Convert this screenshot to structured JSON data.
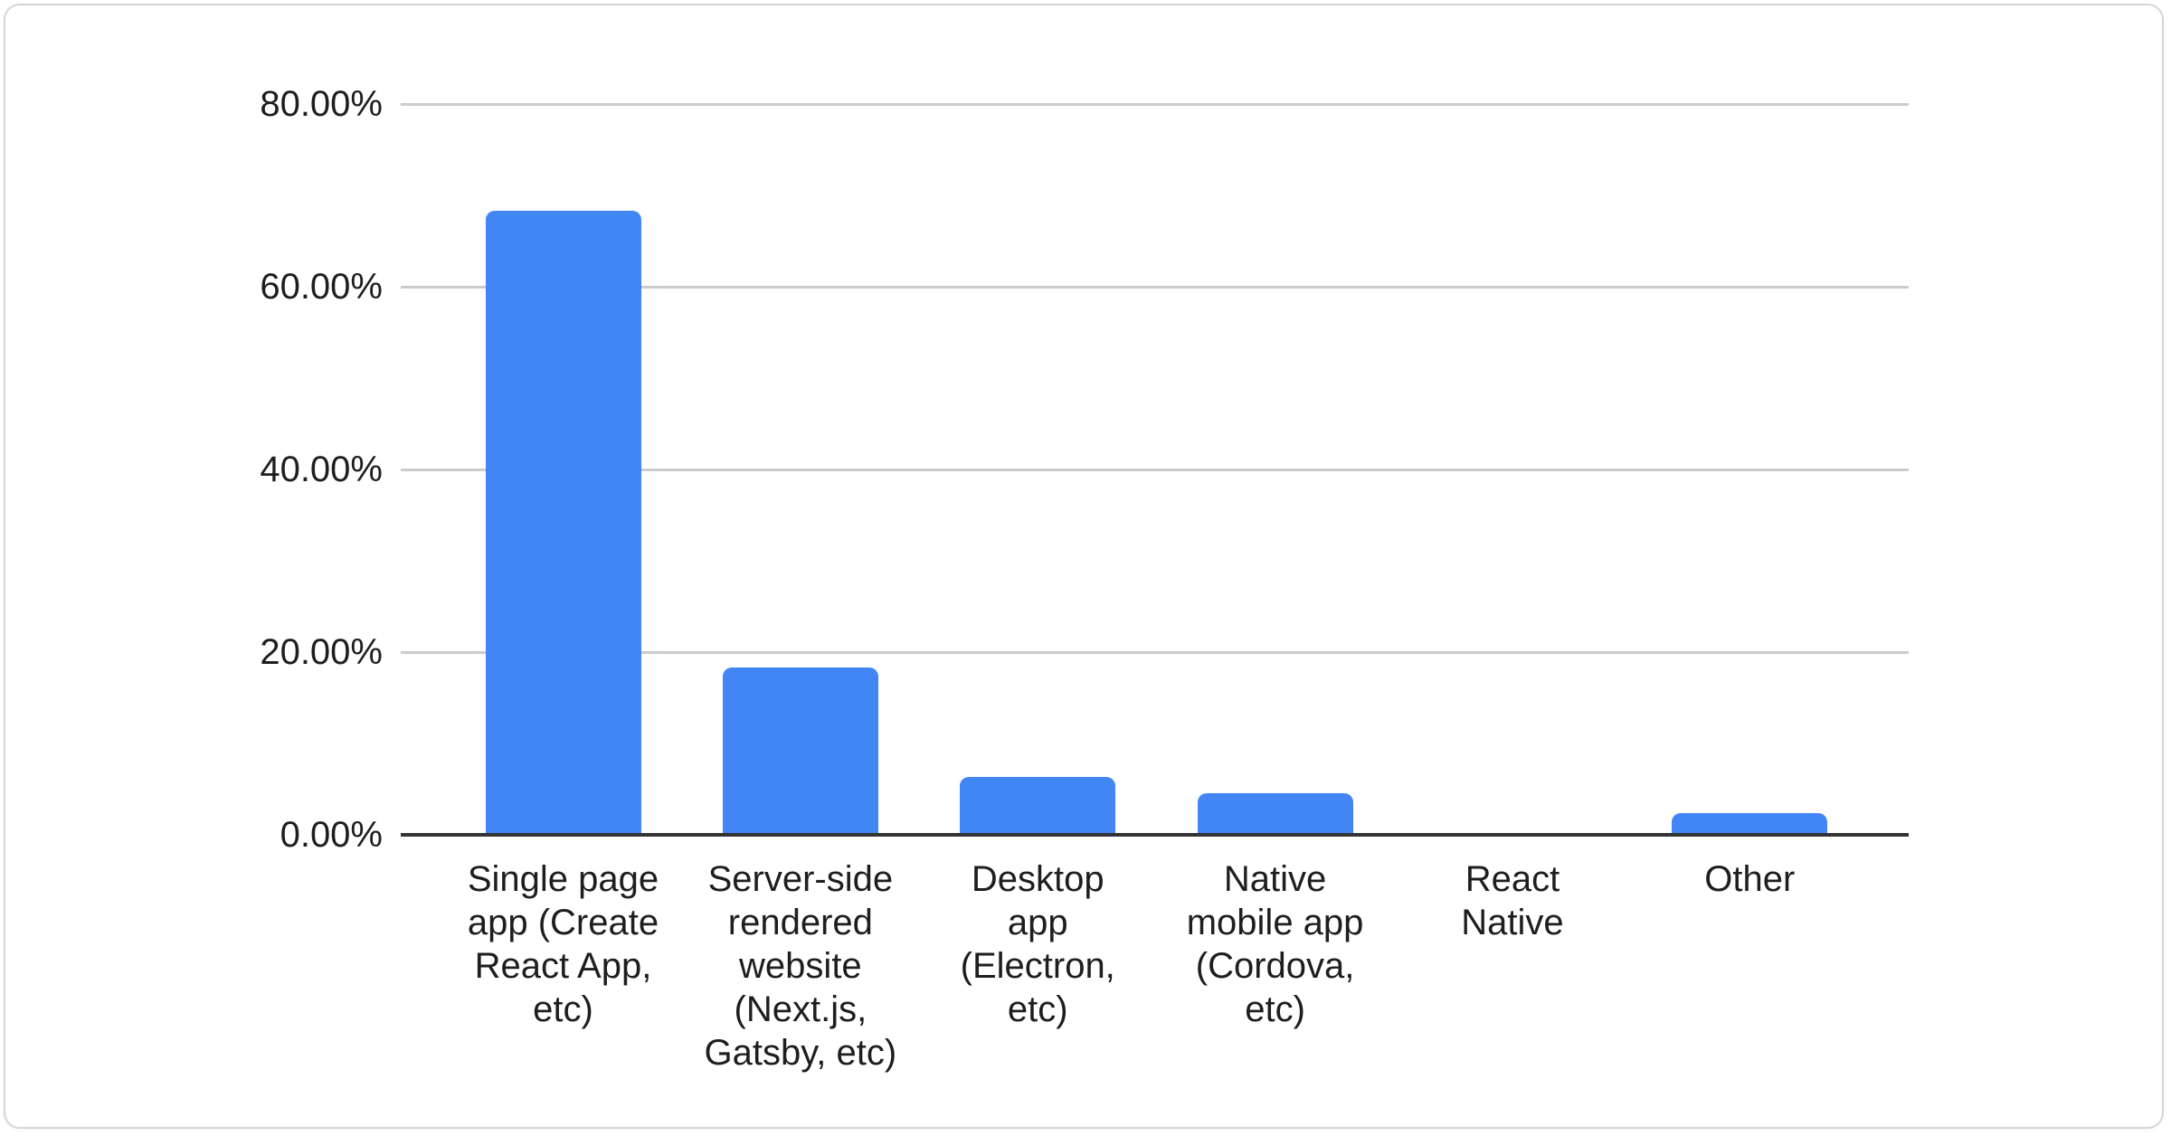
{
  "chart_data": {
    "type": "bar",
    "title": "",
    "xlabel": "",
    "ylabel": "",
    "categories": [
      "Single page app (Create React App, etc)",
      "Server-side rendered website (Next.js, Gatsby, etc)",
      "Desktop app (Electron, etc)",
      "Native mobile app (Cordova, etc)",
      "React Native",
      "Other"
    ],
    "category_label_lines": [
      [
        "Single page",
        "app (Create",
        "React App,",
        "etc)"
      ],
      [
        "Server-side",
        "rendered",
        "website",
        "(Next.js,",
        "Gatsby, etc)"
      ],
      [
        "Desktop",
        "app",
        "(Electron,",
        "etc)"
      ],
      [
        "Native",
        "mobile app",
        "(Cordova,",
        "etc)"
      ],
      [
        "React",
        "Native"
      ],
      [
        "Other"
      ]
    ],
    "values": [
      68.3,
      18.3,
      6.3,
      4.6,
      0,
      2.4
    ],
    "unit": "%",
    "ylim": [
      0,
      80
    ],
    "yticks": [
      0,
      20,
      40,
      60,
      80
    ],
    "ytick_labels": [
      "0.00%",
      "20.00%",
      "40.00%",
      "60.00%",
      "80.00%"
    ],
    "grid": true,
    "legend": false,
    "colors": {
      "bar": "#4285f4",
      "axis_line": "#333333",
      "gridline": "#cccccc",
      "label": "#1e1e1e",
      "card_border": "#d5d6d8",
      "background": "#ffffff"
    }
  }
}
